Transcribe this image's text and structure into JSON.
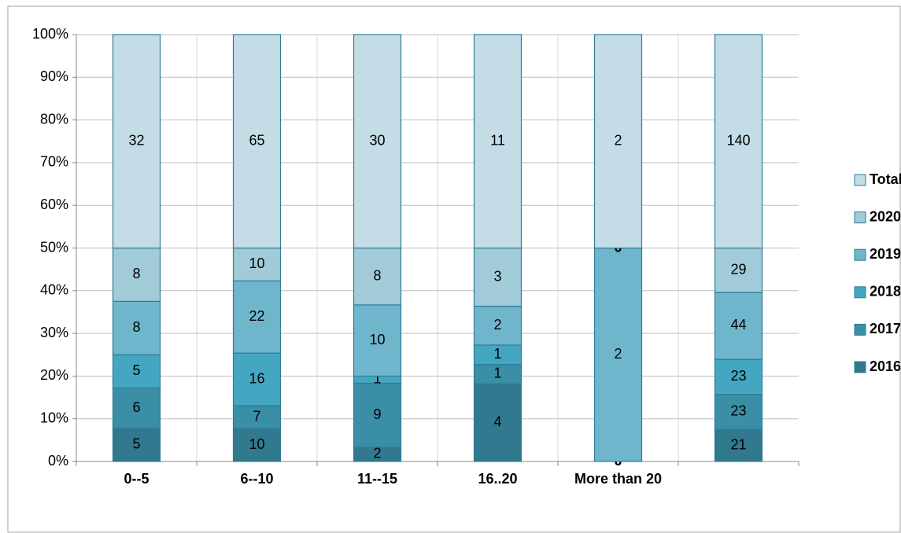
{
  "chart_data": {
    "type": "stacked_bar_percent",
    "categories": [
      "0--5",
      "6--10",
      "11--15",
      "16..20",
      "More than 20",
      null
    ],
    "series": [
      {
        "name": "2016",
        "color": "#31798f",
        "values": [
          5,
          10,
          2,
          4,
          0,
          21
        ]
      },
      {
        "name": "2017",
        "color": "#3a8ea6",
        "values": [
          6,
          7,
          9,
          1,
          0,
          23
        ]
      },
      {
        "name": "2018",
        "color": "#44a6c0",
        "values": [
          5,
          16,
          1,
          1,
          0,
          23
        ]
      },
      {
        "name": "2019",
        "color": "#6fb6cc",
        "values": [
          8,
          22,
          10,
          2,
          2,
          44
        ]
      },
      {
        "name": "2020",
        "color": "#a1cbd9",
        "values": [
          8,
          10,
          8,
          3,
          0,
          29
        ]
      },
      {
        "name": "Total",
        "color": "#c3dce5",
        "values": [
          32,
          65,
          30,
          11,
          2,
          140
        ]
      }
    ],
    "ylim": [
      0,
      100
    ],
    "yticks": [
      {
        "value": 0,
        "label": "0%"
      },
      {
        "value": 10,
        "label": "10%"
      },
      {
        "value": 20,
        "label": "20%"
      },
      {
        "value": 30,
        "label": "30%"
      },
      {
        "value": 40,
        "label": "40%"
      },
      {
        "value": 50,
        "label": "50%"
      },
      {
        "value": 60,
        "label": "60%"
      },
      {
        "value": 70,
        "label": "70%"
      },
      {
        "value": 80,
        "label": "80%"
      },
      {
        "value": 90,
        "label": "90%"
      },
      {
        "value": 100,
        "label": "100%"
      }
    ],
    "grid": true,
    "legend": "right"
  }
}
